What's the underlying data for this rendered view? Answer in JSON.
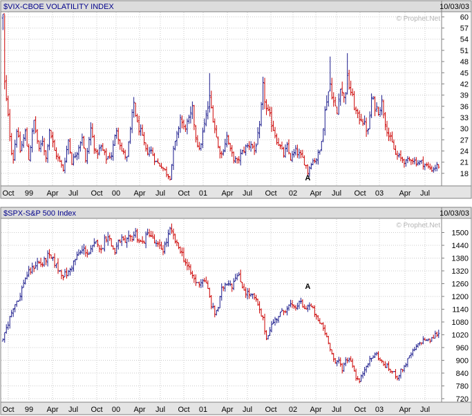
{
  "chart_data": [
    {
      "type": "ohlc",
      "title": "$VIX-CBOE VOLATILITY INDEX",
      "date_stamp": "10/03/03",
      "watermark": "© Prophet.Net",
      "ylim": [
        15,
        61
      ],
      "yticks": [
        18,
        21,
        24,
        27,
        30,
        33,
        36,
        39,
        42,
        45,
        48,
        51,
        54,
        57,
        60
      ],
      "xticks": [
        "Oct",
        "99",
        "Apr",
        "Jul",
        "Oct",
        "00",
        "Apr",
        "Jul",
        "Oct",
        "01",
        "Apr",
        "Jul",
        "Oct",
        "02",
        "Apr",
        "Jul",
        "Oct",
        "03",
        "Apr",
        "Jul"
      ],
      "annotation": {
        "label": "A",
        "week": 177,
        "value": 18.3
      },
      "up_color": "#1a1a8c",
      "down_color": "#cc0000",
      "grid": true,
      "anchors": [
        [
          0,
          60
        ],
        [
          1,
          42
        ],
        [
          3,
          33
        ],
        [
          5,
          24
        ],
        [
          6,
          22
        ],
        [
          8,
          30
        ],
        [
          10,
          24
        ],
        [
          13,
          29
        ],
        [
          15,
          22
        ],
        [
          18,
          32
        ],
        [
          21,
          24
        ],
        [
          23,
          27
        ],
        [
          25,
          22
        ],
        [
          27,
          30
        ],
        [
          30,
          24
        ],
        [
          33,
          21
        ],
        [
          35,
          19
        ],
        [
          38,
          27
        ],
        [
          40,
          21
        ],
        [
          43,
          24
        ],
        [
          46,
          28
        ],
        [
          48,
          21
        ],
        [
          51,
          30
        ],
        [
          54,
          23
        ],
        [
          57,
          25
        ],
        [
          60,
          22
        ],
        [
          63,
          23
        ],
        [
          66,
          30
        ],
        [
          69,
          24
        ],
        [
          72,
          22
        ],
        [
          76,
          37
        ],
        [
          78,
          31
        ],
        [
          80,
          29
        ],
        [
          83,
          24
        ],
        [
          86,
          24
        ],
        [
          89,
          21
        ],
        [
          92,
          20
        ],
        [
          95,
          18
        ],
        [
          97,
          17
        ],
        [
          99,
          24
        ],
        [
          101,
          28
        ],
        [
          103,
          33
        ],
        [
          105,
          30
        ],
        [
          108,
          32
        ],
        [
          110,
          35
        ],
        [
          112,
          28
        ],
        [
          114,
          24
        ],
        [
          117,
          31
        ],
        [
          120,
          38
        ],
        [
          122,
          33
        ],
        [
          125,
          25
        ],
        [
          127,
          23
        ],
        [
          130,
          28
        ],
        [
          132,
          24
        ],
        [
          134,
          22
        ],
        [
          136,
          21
        ],
        [
          138,
          23
        ],
        [
          141,
          25
        ],
        [
          144,
          26
        ],
        [
          146,
          24
        ],
        [
          149,
          30
        ],
        [
          151,
          41
        ],
        [
          153,
          35
        ],
        [
          155,
          33
        ],
        [
          157,
          30
        ],
        [
          159,
          27
        ],
        [
          161,
          25
        ],
        [
          163,
          23
        ],
        [
          165,
          25
        ],
        [
          167,
          22
        ],
        [
          170,
          24
        ],
        [
          172,
          23
        ],
        [
          174,
          22
        ],
        [
          176,
          20
        ],
        [
          177,
          18.3
        ],
        [
          179,
          21
        ],
        [
          182,
          22
        ],
        [
          184,
          24
        ],
        [
          186,
          31
        ],
        [
          188,
          38
        ],
        [
          190,
          42
        ],
        [
          192,
          37
        ],
        [
          194,
          34
        ],
        [
          196,
          42
        ],
        [
          198,
          38
        ],
        [
          200,
          43
        ],
        [
          202,
          40
        ],
        [
          204,
          36
        ],
        [
          206,
          33
        ],
        [
          208,
          33
        ],
        [
          210,
          31
        ],
        [
          212,
          29
        ],
        [
          214,
          38
        ],
        [
          216,
          36
        ],
        [
          218,
          35
        ],
        [
          220,
          37
        ],
        [
          222,
          32
        ],
        [
          224,
          28
        ],
        [
          226,
          26
        ],
        [
          228,
          23
        ],
        [
          231,
          22
        ],
        [
          234,
          21
        ],
        [
          237,
          22
        ],
        [
          240,
          21
        ],
        [
          243,
          21
        ],
        [
          246,
          20
        ],
        [
          249,
          19
        ],
        [
          252,
          20
        ]
      ]
    },
    {
      "type": "ohlc",
      "title": "$SPX-S&P 500 Index",
      "date_stamp": "10/03/03",
      "watermark": "© Prophet.Net",
      "ylim": [
        710,
        1560
      ],
      "yticks": [
        720,
        780,
        840,
        900,
        960,
        1020,
        1080,
        1140,
        1200,
        1260,
        1320,
        1380,
        1440,
        1500
      ],
      "xticks": [
        "Oct",
        "99",
        "Apr",
        "Jul",
        "Oct",
        "00",
        "Apr",
        "Jul",
        "Oct",
        "01",
        "Apr",
        "Jul",
        "Oct",
        "02",
        "Apr",
        "Jul",
        "Oct",
        "03",
        "Apr",
        "Jul"
      ],
      "annotation": {
        "label": "A",
        "week": 177,
        "value": 1170
      },
      "up_color": "#1a1a8c",
      "down_color": "#cc0000",
      "grid": true,
      "anchors": [
        [
          0,
          990
        ],
        [
          2,
          1050
        ],
        [
          4,
          1100
        ],
        [
          6,
          1150
        ],
        [
          8,
          1180
        ],
        [
          10,
          1200
        ],
        [
          12,
          1270
        ],
        [
          14,
          1300
        ],
        [
          17,
          1330
        ],
        [
          20,
          1360
        ],
        [
          23,
          1350
        ],
        [
          26,
          1390
        ],
        [
          29,
          1370
        ],
        [
          32,
          1330
        ],
        [
          35,
          1300
        ],
        [
          38,
          1310
        ],
        [
          41,
          1360
        ],
        [
          44,
          1400
        ],
        [
          47,
          1420
        ],
        [
          50,
          1400
        ],
        [
          53,
          1440
        ],
        [
          55,
          1460
        ],
        [
          57,
          1410
        ],
        [
          59,
          1470
        ],
        [
          61,
          1490
        ],
        [
          63,
          1440
        ],
        [
          65,
          1410
        ],
        [
          67,
          1450
        ],
        [
          69,
          1470
        ],
        [
          71,
          1440
        ],
        [
          73,
          1470
        ],
        [
          75,
          1480
        ],
        [
          77,
          1500
        ],
        [
          79,
          1460
        ],
        [
          81,
          1450
        ],
        [
          83,
          1480
        ],
        [
          85,
          1500
        ],
        [
          87,
          1470
        ],
        [
          89,
          1440
        ],
        [
          91,
          1430
        ],
        [
          93,
          1420
        ],
        [
          95,
          1460
        ],
        [
          97,
          1510
        ],
        [
          99,
          1480
        ],
        [
          101,
          1440
        ],
        [
          103,
          1420
        ],
        [
          105,
          1380
        ],
        [
          107,
          1340
        ],
        [
          109,
          1310
        ],
        [
          111,
          1280
        ],
        [
          113,
          1260
        ],
        [
          115,
          1270
        ],
        [
          117,
          1280
        ],
        [
          119,
          1230
        ],
        [
          121,
          1160
        ],
        [
          123,
          1120
        ],
        [
          125,
          1150
        ],
        [
          127,
          1230
        ],
        [
          129,
          1260
        ],
        [
          131,
          1270
        ],
        [
          133,
          1250
        ],
        [
          135,
          1300
        ],
        [
          137,
          1290
        ],
        [
          139,
          1250
        ],
        [
          141,
          1220
        ],
        [
          143,
          1210
        ],
        [
          145,
          1200
        ],
        [
          147,
          1180
        ],
        [
          149,
          1130
        ],
        [
          151,
          1090
        ],
        [
          153,
          1000
        ],
        [
          155,
          1050
        ],
        [
          157,
          1080
        ],
        [
          159,
          1100
        ],
        [
          161,
          1120
        ],
        [
          163,
          1130
        ],
        [
          165,
          1150
        ],
        [
          167,
          1160
        ],
        [
          169,
          1140
        ],
        [
          171,
          1160
        ],
        [
          173,
          1170
        ],
        [
          175,
          1140
        ],
        [
          177,
          1160
        ],
        [
          179,
          1150
        ],
        [
          181,
          1120
        ],
        [
          183,
          1080
        ],
        [
          185,
          1070
        ],
        [
          187,
          1030
        ],
        [
          189,
          990
        ],
        [
          191,
          930
        ],
        [
          193,
          880
        ],
        [
          195,
          900
        ],
        [
          197,
          860
        ],
        [
          199,
          900
        ],
        [
          201,
          910
        ],
        [
          203,
          880
        ],
        [
          205,
          820
        ],
        [
          207,
          800
        ],
        [
          209,
          840
        ],
        [
          211,
          880
        ],
        [
          213,
          900
        ],
        [
          215,
          920
        ],
        [
          217,
          930
        ],
        [
          219,
          900
        ],
        [
          221,
          880
        ],
        [
          223,
          870
        ],
        [
          225,
          850
        ],
        [
          227,
          840
        ],
        [
          229,
          820
        ],
        [
          231,
          850
        ],
        [
          233,
          870
        ],
        [
          235,
          900
        ],
        [
          237,
          930
        ],
        [
          239,
          950
        ],
        [
          241,
          970
        ],
        [
          243,
          990
        ],
        [
          245,
          1000
        ],
        [
          247,
          990
        ],
        [
          249,
          1000
        ],
        [
          251,
          1020
        ],
        [
          253,
          1030
        ]
      ]
    }
  ]
}
